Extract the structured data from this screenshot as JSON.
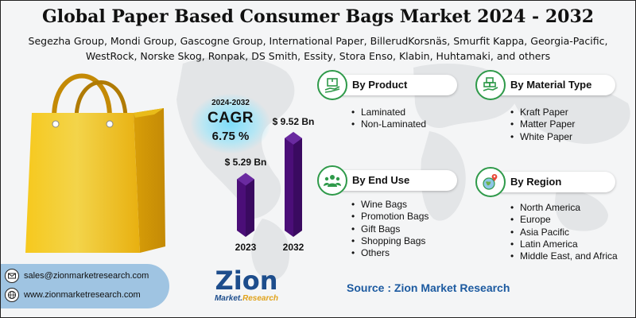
{
  "title": "Global Paper Based Consumer Bags Market 2024 - 2032",
  "companies_line1": "Segezha Group, Mondi Group, Gascogne Group, International Paper, BillerudKorsnäs, Smurfit Kappa, Georgia-Pacific,",
  "companies_line2": "WestRock, Norske Skog, Ronpak, DS Smith, Essity, Stora Enso, Klabin, Huhtamaki, and others",
  "cagr": {
    "period": "2024-2032",
    "label": "CAGR",
    "value": "6.75 %"
  },
  "chart_data": {
    "type": "bar",
    "categories": [
      "2023",
      "2032"
    ],
    "values": [
      5.29,
      9.52
    ],
    "value_labels": [
      "$ 5.29 Bn",
      "$ 9.52 Bn"
    ],
    "ylim": [
      0,
      10
    ],
    "bar_color": "#4b0e78"
  },
  "segments": {
    "product": {
      "title": "By Product",
      "icon": "box-hand-icon",
      "items": [
        "Laminated",
        "Non-Laminated"
      ]
    },
    "material": {
      "title": "By Material Type",
      "icon": "boxes-hand-icon",
      "items": [
        "Kraft Paper",
        "Matter Paper",
        "White Paper"
      ]
    },
    "end_use": {
      "title": "By End Use",
      "icon": "users-icon",
      "items": [
        "Wine Bags",
        "Promotion Bags",
        "Gift Bags",
        "Shopping Bags",
        "Others"
      ]
    },
    "region": {
      "title": "By Region",
      "icon": "globe-pin-icon",
      "items": [
        "North America",
        "Europe",
        "Asia Pacific",
        "Latin America",
        "Middle East, and Africa"
      ]
    }
  },
  "contact": {
    "email": "sales@zionmarketresearch.com",
    "website": "www.zionmarketresearch.com"
  },
  "logo": {
    "word": "Zion",
    "sub_left": "Market.",
    "sub_right": "Research"
  },
  "source": "Source : Zion Market Research",
  "colors": {
    "accent_green": "#2f9a4a",
    "bar_purple": "#4b0e78",
    "source_blue": "#1c5aa0",
    "contact_bg": "#9fc4e2",
    "bag_yellow": "#f2c21b"
  }
}
